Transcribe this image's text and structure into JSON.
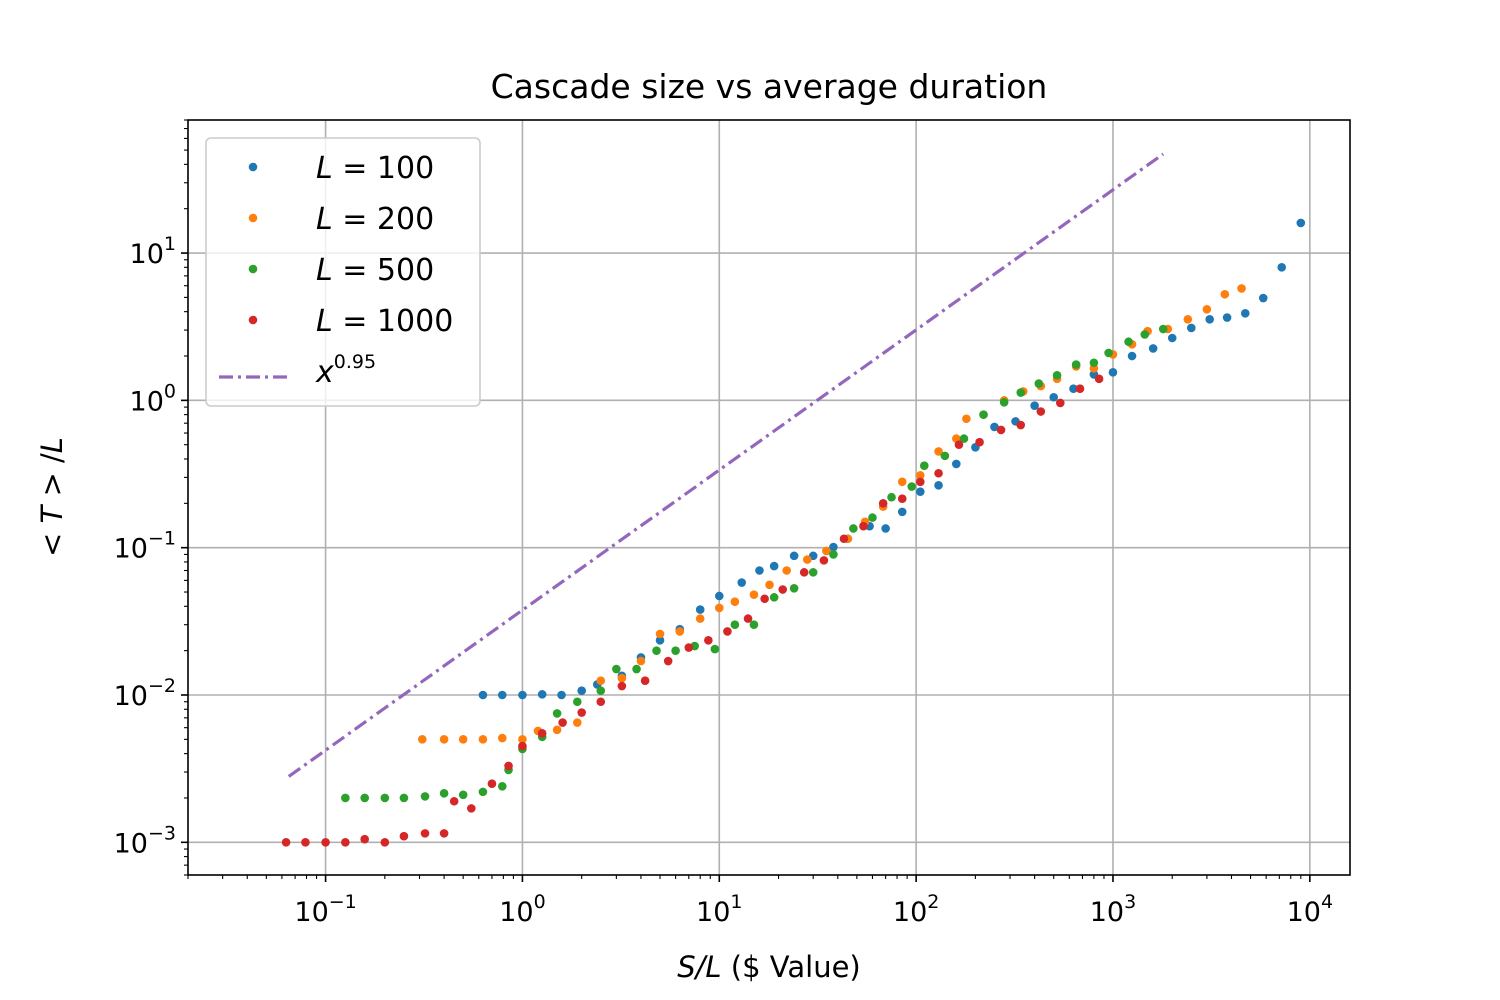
{
  "chart_data": {
    "type": "scatter",
    "title": "Cascade size vs average duration",
    "xlabel": "S/L ($ Value)",
    "ylabel": "<T>/L",
    "xscale": "log",
    "yscale": "log",
    "xlim": [
      0.02,
      16000
    ],
    "ylim": [
      0.0006,
      80
    ],
    "grid": true,
    "legend_position": "top-left",
    "xticks": [
      {
        "base": "10",
        "exp": "−1"
      },
      {
        "base": "10",
        "exp": "0"
      },
      {
        "base": "10",
        "exp": "1"
      },
      {
        "base": "10",
        "exp": "2"
      },
      {
        "base": "10",
        "exp": "3"
      },
      {
        "base": "10",
        "exp": "4"
      }
    ],
    "yticks": [
      {
        "base": "10",
        "exp": "−3"
      },
      {
        "base": "10",
        "exp": "−2"
      },
      {
        "base": "10",
        "exp": "−1"
      },
      {
        "base": "10",
        "exp": "0"
      },
      {
        "base": "10",
        "exp": "1"
      }
    ],
    "series": [
      {
        "name": "L = 100",
        "var": "L",
        "val": "= 100",
        "color": "#1f77b4",
        "points": [
          [
            0.63,
            0.01
          ],
          [
            0.79,
            0.01
          ],
          [
            1.0,
            0.01
          ],
          [
            1.26,
            0.0101
          ],
          [
            1.58,
            0.01
          ],
          [
            2.0,
            0.0107
          ],
          [
            2.4,
            0.0118
          ],
          [
            3.2,
            0.0135
          ],
          [
            4.0,
            0.018
          ],
          [
            5.0,
            0.0235
          ],
          [
            6.3,
            0.028
          ],
          [
            8.0,
            0.038
          ],
          [
            10,
            0.047
          ],
          [
            13,
            0.058
          ],
          [
            16,
            0.07
          ],
          [
            19,
            0.075
          ],
          [
            24,
            0.088
          ],
          [
            30,
            0.088
          ],
          [
            38,
            0.101
          ],
          [
            45,
            0.115
          ],
          [
            58,
            0.14
          ],
          [
            70,
            0.135
          ],
          [
            85,
            0.175
          ],
          [
            105,
            0.24
          ],
          [
            130,
            0.265
          ],
          [
            160,
            0.37
          ],
          [
            200,
            0.48
          ],
          [
            250,
            0.66
          ],
          [
            320,
            0.72
          ],
          [
            400,
            0.92
          ],
          [
            500,
            1.05
          ],
          [
            630,
            1.2
          ],
          [
            800,
            1.5
          ],
          [
            1000,
            1.55
          ],
          [
            1250,
            2.0
          ],
          [
            1600,
            2.25
          ],
          [
            2000,
            2.65
          ],
          [
            2500,
            3.1
          ],
          [
            3100,
            3.55
          ],
          [
            3800,
            3.65
          ],
          [
            4700,
            3.9
          ],
          [
            5800,
            4.95
          ],
          [
            7200,
            8.0
          ],
          [
            9000,
            16.0
          ]
        ]
      },
      {
        "name": "L = 200",
        "var": "L",
        "val": "= 200",
        "color": "#ff7f0e",
        "points": [
          [
            0.31,
            0.005
          ],
          [
            0.4,
            0.005
          ],
          [
            0.5,
            0.005
          ],
          [
            0.63,
            0.005
          ],
          [
            0.79,
            0.0051
          ],
          [
            1.0,
            0.005
          ],
          [
            1.2,
            0.0057
          ],
          [
            1.5,
            0.0058
          ],
          [
            1.9,
            0.0065
          ],
          [
            2.5,
            0.0125
          ],
          [
            3.2,
            0.013
          ],
          [
            4.0,
            0.017
          ],
          [
            5.0,
            0.026
          ],
          [
            6.3,
            0.027
          ],
          [
            8.0,
            0.033
          ],
          [
            10,
            0.039
          ],
          [
            12,
            0.043
          ],
          [
            15,
            0.048
          ],
          [
            18,
            0.056
          ],
          [
            22,
            0.07
          ],
          [
            28,
            0.083
          ],
          [
            35,
            0.095
          ],
          [
            45,
            0.115
          ],
          [
            55,
            0.15
          ],
          [
            68,
            0.19
          ],
          [
            85,
            0.28
          ],
          [
            105,
            0.31
          ],
          [
            130,
            0.45
          ],
          [
            160,
            0.55
          ],
          [
            180,
            0.75
          ],
          [
            220,
            0.8
          ],
          [
            280,
            1.0
          ],
          [
            350,
            1.15
          ],
          [
            430,
            1.25
          ],
          [
            520,
            1.4
          ],
          [
            650,
            1.7
          ],
          [
            800,
            1.65
          ],
          [
            1000,
            2.05
          ],
          [
            1250,
            2.4
          ],
          [
            1500,
            2.95
          ],
          [
            1900,
            3.05
          ],
          [
            2400,
            3.55
          ],
          [
            3000,
            4.15
          ],
          [
            3700,
            5.25
          ],
          [
            4500,
            5.75
          ]
        ]
      },
      {
        "name": "L = 500",
        "var": "L",
        "val": "= 500",
        "color": "#2ca02c",
        "points": [
          [
            0.126,
            0.002
          ],
          [
            0.158,
            0.002
          ],
          [
            0.2,
            0.002
          ],
          [
            0.25,
            0.002
          ],
          [
            0.32,
            0.00205
          ],
          [
            0.4,
            0.00215
          ],
          [
            0.5,
            0.0021
          ],
          [
            0.63,
            0.0022
          ],
          [
            0.79,
            0.0024
          ],
          [
            0.85,
            0.0031
          ],
          [
            1.0,
            0.0043
          ],
          [
            1.26,
            0.0052
          ],
          [
            1.5,
            0.0075
          ],
          [
            1.9,
            0.009
          ],
          [
            2.5,
            0.0107
          ],
          [
            3.0,
            0.015
          ],
          [
            3.8,
            0.015
          ],
          [
            4.8,
            0.02
          ],
          [
            6.0,
            0.02
          ],
          [
            7.5,
            0.0215
          ],
          [
            9.5,
            0.0205
          ],
          [
            12,
            0.03
          ],
          [
            15,
            0.03
          ],
          [
            19,
            0.046
          ],
          [
            24,
            0.053
          ],
          [
            30,
            0.068
          ],
          [
            38,
            0.09
          ],
          [
            48,
            0.135
          ],
          [
            60,
            0.16
          ],
          [
            75,
            0.22
          ],
          [
            95,
            0.26
          ],
          [
            110,
            0.36
          ],
          [
            140,
            0.42
          ],
          [
            175,
            0.55
          ],
          [
            220,
            0.8
          ],
          [
            280,
            0.97
          ],
          [
            340,
            1.13
          ],
          [
            420,
            1.3
          ],
          [
            520,
            1.48
          ],
          [
            650,
            1.75
          ],
          [
            800,
            1.8
          ],
          [
            950,
            2.1
          ],
          [
            1200,
            2.5
          ],
          [
            1450,
            2.8
          ],
          [
            1800,
            3.05
          ]
        ]
      },
      {
        "name": "L = 1000",
        "var": "L",
        "val": "= 1000",
        "color": "#d62728",
        "points": [
          [
            0.063,
            0.001
          ],
          [
            0.079,
            0.001
          ],
          [
            0.1,
            0.001
          ],
          [
            0.126,
            0.001
          ],
          [
            0.158,
            0.00105
          ],
          [
            0.2,
            0.001
          ],
          [
            0.25,
            0.0011
          ],
          [
            0.32,
            0.00115
          ],
          [
            0.4,
            0.00115
          ],
          [
            0.45,
            0.0019
          ],
          [
            0.55,
            0.0017
          ],
          [
            0.7,
            0.0025
          ],
          [
            0.85,
            0.0033
          ],
          [
            1.0,
            0.0045
          ],
          [
            1.26,
            0.0055
          ],
          [
            1.6,
            0.0065
          ],
          [
            2.0,
            0.0076
          ],
          [
            2.5,
            0.009
          ],
          [
            3.2,
            0.0115
          ],
          [
            4.2,
            0.0125
          ],
          [
            5.5,
            0.017
          ],
          [
            7.0,
            0.021
          ],
          [
            8.8,
            0.0235
          ],
          [
            11,
            0.027
          ],
          [
            14,
            0.033
          ],
          [
            17,
            0.045
          ],
          [
            21,
            0.052
          ],
          [
            27,
            0.068
          ],
          [
            34,
            0.082
          ],
          [
            43,
            0.115
          ],
          [
            54,
            0.14
          ],
          [
            68,
            0.2
          ],
          [
            85,
            0.215
          ],
          [
            105,
            0.28
          ],
          [
            130,
            0.32
          ],
          [
            165,
            0.5
          ],
          [
            210,
            0.52
          ],
          [
            270,
            0.63
          ],
          [
            340,
            0.68
          ],
          [
            430,
            0.84
          ],
          [
            540,
            0.96
          ],
          [
            680,
            1.2
          ],
          [
            850,
            1.4
          ]
        ]
      },
      {
        "name": "x^0.95",
        "var": "x",
        "val": "0.95",
        "type": "line",
        "style": "dash-dot",
        "color": "#9467bd",
        "x": [
          0.065,
          1800
        ],
        "y": [
          0.0028,
          47
        ]
      }
    ]
  }
}
